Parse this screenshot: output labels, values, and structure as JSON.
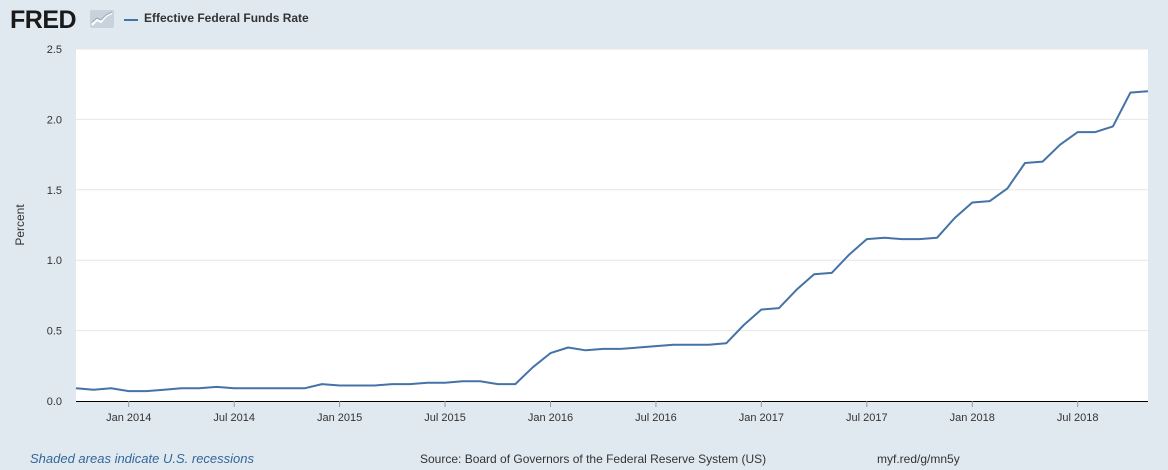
{
  "header": {
    "logo_text": "FRED",
    "series_label": "Effective Federal Funds Rate"
  },
  "colors": {
    "series": "#4572a7",
    "background": "#e1e9f0",
    "plot": "#ffffff",
    "gridline": "#e6e6e6",
    "axis": "#000000"
  },
  "footer": {
    "recession_note": "Shaded areas indicate U.S. recessions",
    "source": "Source: Board of Governors of the Federal Reserve System (US)",
    "short_url": "myf.red/g/mn5y"
  },
  "chart_data": {
    "type": "line",
    "title": "",
    "xlabel": "",
    "ylabel": "Percent",
    "ylim": [
      0.0,
      2.5
    ],
    "yticks": [
      "0.0",
      "0.5",
      "1.0",
      "1.5",
      "2.0",
      "2.5"
    ],
    "xlim": [
      "2013-10",
      "2018-11"
    ],
    "xticks": [
      {
        "label": "Jan 2014",
        "date": "2014-01"
      },
      {
        "label": "Jul 2014",
        "date": "2014-07"
      },
      {
        "label": "Jan 2015",
        "date": "2015-01"
      },
      {
        "label": "Jul 2015",
        "date": "2015-07"
      },
      {
        "label": "Jan 2016",
        "date": "2016-01"
      },
      {
        "label": "Jul 2016",
        "date": "2016-07"
      },
      {
        "label": "Jan 2017",
        "date": "2017-01"
      },
      {
        "label": "Jul 2017",
        "date": "2017-07"
      },
      {
        "label": "Jan 2018",
        "date": "2018-01"
      },
      {
        "label": "Jul 2018",
        "date": "2018-07"
      }
    ],
    "grid": true,
    "legend": "top-left",
    "series": [
      {
        "name": "Effective Federal Funds Rate",
        "x": [
          "2013-10",
          "2013-11",
          "2013-12",
          "2014-01",
          "2014-02",
          "2014-03",
          "2014-04",
          "2014-05",
          "2014-06",
          "2014-07",
          "2014-08",
          "2014-09",
          "2014-10",
          "2014-11",
          "2014-12",
          "2015-01",
          "2015-02",
          "2015-03",
          "2015-04",
          "2015-05",
          "2015-06",
          "2015-07",
          "2015-08",
          "2015-09",
          "2015-10",
          "2015-11",
          "2015-12",
          "2016-01",
          "2016-02",
          "2016-03",
          "2016-04",
          "2016-05",
          "2016-06",
          "2016-07",
          "2016-08",
          "2016-09",
          "2016-10",
          "2016-11",
          "2016-12",
          "2017-01",
          "2017-02",
          "2017-03",
          "2017-04",
          "2017-05",
          "2017-06",
          "2017-07",
          "2017-08",
          "2017-09",
          "2017-10",
          "2017-11",
          "2017-12",
          "2018-01",
          "2018-02",
          "2018-03",
          "2018-04",
          "2018-05",
          "2018-06",
          "2018-07",
          "2018-08",
          "2018-09",
          "2018-10",
          "2018-11"
        ],
        "values": [
          0.09,
          0.08,
          0.09,
          0.07,
          0.07,
          0.08,
          0.09,
          0.09,
          0.1,
          0.09,
          0.09,
          0.09,
          0.09,
          0.09,
          0.12,
          0.11,
          0.11,
          0.11,
          0.12,
          0.12,
          0.13,
          0.13,
          0.14,
          0.14,
          0.12,
          0.12,
          0.24,
          0.34,
          0.38,
          0.36,
          0.37,
          0.37,
          0.38,
          0.39,
          0.4,
          0.4,
          0.4,
          0.41,
          0.54,
          0.65,
          0.66,
          0.79,
          0.9,
          0.91,
          1.04,
          1.15,
          1.16,
          1.15,
          1.15,
          1.16,
          1.3,
          1.41,
          1.42,
          1.51,
          1.69,
          1.7,
          1.82,
          1.91,
          1.91,
          1.95,
          2.19,
          2.2
        ]
      }
    ]
  }
}
